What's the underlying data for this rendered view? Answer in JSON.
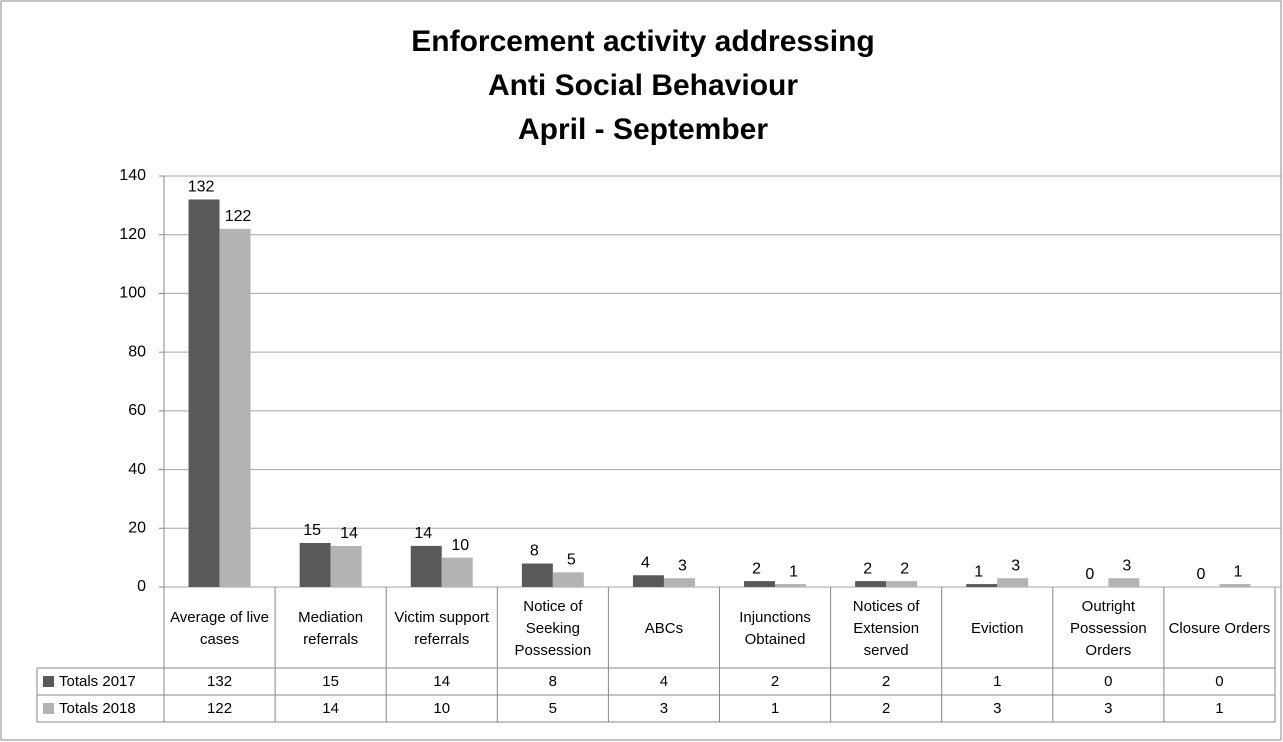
{
  "chart_data": {
    "type": "bar",
    "title_lines": [
      "Enforcement activity addressing",
      "Anti Social Behaviour",
      "April - September"
    ],
    "categories": [
      "Average of live cases",
      "Mediation referrals",
      "Victim support referrals",
      "Notice of Seeking Possession",
      "ABCs",
      "Injunctions Obtained",
      "Notices of Extension served",
      "Eviction",
      "Outright Possession Orders",
      "Closure Orders"
    ],
    "series": [
      {
        "name": "Totals 2017",
        "color": "#595959",
        "values": [
          132,
          15,
          14,
          8,
          4,
          2,
          2,
          1,
          0,
          0
        ]
      },
      {
        "name": "Totals 2018",
        "color": "#b3b3b3",
        "values": [
          122,
          14,
          10,
          5,
          3,
          1,
          2,
          3,
          3,
          1
        ]
      }
    ],
    "ylim": [
      0,
      140
    ],
    "yticks": [
      0,
      20,
      40,
      60,
      80,
      100,
      120,
      140
    ],
    "grid": true
  }
}
